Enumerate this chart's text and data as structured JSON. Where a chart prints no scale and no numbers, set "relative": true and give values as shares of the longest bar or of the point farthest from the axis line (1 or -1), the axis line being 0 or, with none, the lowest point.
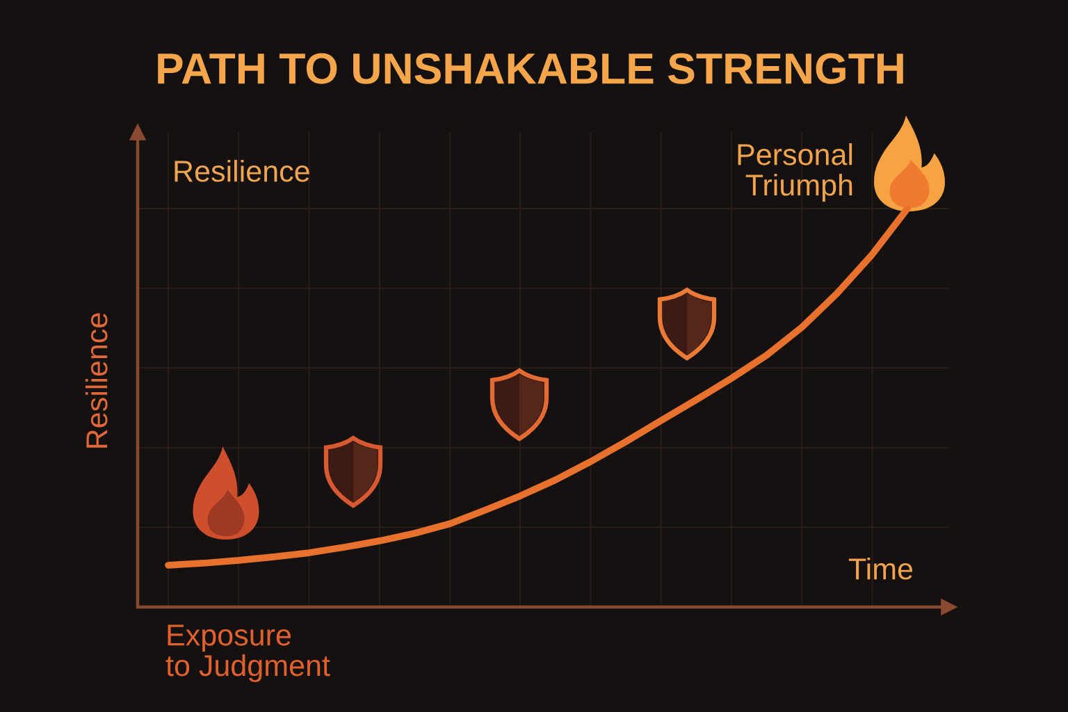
{
  "chart_data": {
    "type": "line",
    "title": "PATH TO UNSHAKABLE STRENGTH",
    "xlabel": "Time",
    "ylabel": "Resilience",
    "annotations": [
      "Resilience",
      "Exposure\nto Judgment",
      "Personal\nTriumph"
    ],
    "categories": [
      null,
      null,
      null,
      null,
      null,
      null,
      null,
      null,
      null,
      null,
      null,
      null,
      null,
      null,
      null,
      null,
      null,
      null,
      null,
      null,
      null,
      null
    ],
    "relative": true,
    "series": [
      {
        "color": "#e8712d",
        "values": [
          0.105,
          0.11,
          0.117,
          0.126,
          0.136,
          0.15,
          0.166,
          0.185,
          0.209,
          0.243,
          0.279,
          0.319,
          0.365,
          0.415,
          0.468,
          0.52,
          0.574,
          0.632,
          0.702,
          0.787,
          0.885,
          1
        ]
      }
    ],
    "grid": true
  }
}
